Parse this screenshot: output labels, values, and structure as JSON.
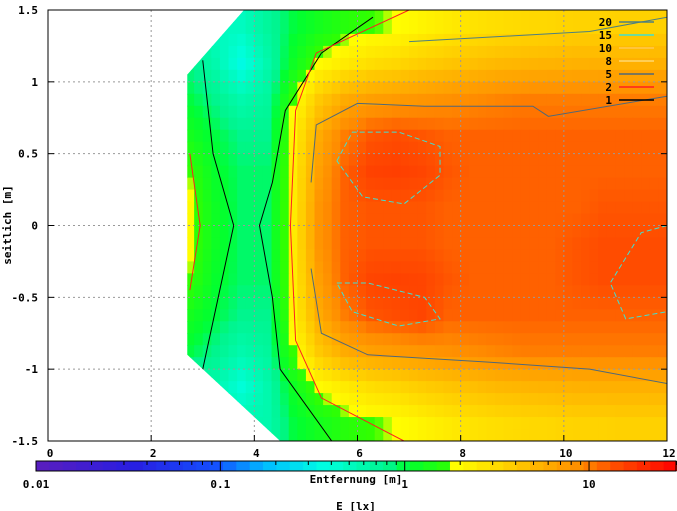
{
  "chart_data": {
    "type": "heatmap",
    "xlabel": "Entfernung [m]",
    "ylabel": "seitlich [m]",
    "colorbar_label": "E [lx]",
    "xlim": [
      0,
      12
    ],
    "ylim": [
      -1.5,
      1.5
    ],
    "grid": true,
    "x_ticks": [
      "0",
      "2",
      "4",
      "6",
      "8",
      "10",
      "12"
    ],
    "x_tick_values": [
      0,
      2,
      4,
      6,
      8,
      10,
      12
    ],
    "y_ticks": [
      "1.5",
      "1",
      "0.5",
      "0",
      "-0.5",
      "-1",
      "-1.5"
    ],
    "y_tick_values": [
      1.5,
      1,
      0.5,
      0,
      -0.5,
      -1,
      -1.5
    ],
    "colorbar": {
      "scale": "log",
      "range": [
        0.01,
        30
      ],
      "ticks": [
        "0.01",
        "0.1",
        "1",
        "10"
      ],
      "tick_values": [
        0.01,
        0.1,
        1,
        10
      ]
    },
    "legend_position": "top-right",
    "grid_x_edges": [
      2.5,
      12
    ],
    "grid_x_step": 0.5,
    "grid_y_edges": [
      1.5,
      -1.5
    ],
    "grid_y_step": 0.25,
    "values": [
      [
        null,
        null,
        0.5,
        0.7,
        1.0,
        1.3,
        1.6,
        1.8,
        1.9,
        2.2,
        2.5,
        2.8,
        3.0,
        3.2,
        3.3,
        3.5,
        3.5,
        3.6,
        3.6
      ],
      [
        0.8,
        0.6,
        0.35,
        0.6,
        1.2,
        2.0,
        2.5,
        3.0,
        3.3,
        3.8,
        4.2,
        4.6,
        5.0,
        5.2,
        5.4,
        5.5,
        5.6,
        5.6,
        5.6
      ],
      [
        1.0,
        0.8,
        0.6,
        0.7,
        1.8,
        4.0,
        6.0,
        7.0,
        7.5,
        8.0,
        8.5,
        9.0,
        9.5,
        10,
        10,
        10,
        10,
        10,
        10
      ],
      [
        1.3,
        1.0,
        0.8,
        0.8,
        2.2,
        6.0,
        10,
        13,
        14,
        13,
        12,
        12,
        12,
        12,
        12,
        12,
        12,
        12,
        12
      ],
      [
        1.8,
        1.1,
        0.9,
        0.9,
        2.4,
        7.0,
        12,
        15.5,
        16,
        15,
        13,
        12,
        12,
        12,
        12,
        12,
        12,
        12,
        12
      ],
      [
        2.0,
        1.2,
        0.9,
        0.9,
        2.5,
        8.0,
        12,
        13,
        13,
        13,
        12,
        12,
        12,
        12,
        12,
        12,
        13,
        13,
        13
      ],
      [
        2.0,
        1.2,
        0.9,
        0.9,
        2.5,
        8.0,
        12,
        13,
        13,
        13,
        12,
        12,
        12,
        12,
        12,
        13,
        14,
        14,
        14
      ],
      [
        1.8,
        1.1,
        0.9,
        0.9,
        2.4,
        7.0,
        12,
        15,
        15.5,
        15,
        13,
        12,
        12,
        12,
        12,
        13,
        14,
        14,
        14
      ],
      [
        1.3,
        1.0,
        0.8,
        0.8,
        2.2,
        6.0,
        10,
        13,
        14,
        15,
        12,
        12,
        12,
        12,
        12,
        12,
        12,
        12,
        12
      ],
      [
        1.0,
        0.8,
        0.6,
        0.7,
        1.8,
        4.0,
        6.0,
        7.0,
        7.5,
        8.0,
        8.5,
        9.0,
        9.5,
        10,
        10,
        10,
        10,
        10,
        10
      ],
      [
        null,
        0.6,
        0.4,
        0.6,
        1.2,
        2.0,
        2.5,
        3.0,
        3.3,
        3.8,
        4.2,
        4.6,
        5.0,
        5.2,
        5.4,
        5.5,
        5.6,
        5.6,
        5.6
      ],
      [
        null,
        null,
        null,
        0.6,
        1.0,
        1.3,
        1.6,
        1.8,
        1.9,
        2.2,
        2.5,
        2.8,
        3.0,
        3.2,
        3.3,
        3.5,
        3.5,
        3.6,
        3.6
      ]
    ],
    "legend": [
      {
        "label": "20",
        "color": "#4d7f80"
      },
      {
        "label": "15",
        "color": "#40e0d0"
      },
      {
        "label": "10",
        "color": "#ffc850"
      },
      {
        "label": "8",
        "color": "#ffd870"
      },
      {
        "label": "5",
        "color": "#506878"
      },
      {
        "label": "2",
        "color": "#ff2020"
      },
      {
        "label": "1",
        "color": "#000000"
      }
    ],
    "contours": [
      {
        "level": "1",
        "color": "#000000",
        "dashed": false,
        "points": [
          [
            3.0,
            1.15
          ],
          [
            3.2,
            0.5
          ],
          [
            3.6,
            0
          ],
          [
            3.3,
            -0.5
          ],
          [
            3.0,
            -1.0
          ]
        ]
      },
      {
        "level": "1",
        "color": "#000000",
        "dashed": false,
        "points": [
          [
            6.3,
            1.45
          ],
          [
            5.3,
            1.2
          ],
          [
            4.6,
            0.8
          ],
          [
            4.35,
            0.3
          ],
          [
            4.1,
            0
          ],
          [
            4.35,
            -0.5
          ],
          [
            4.5,
            -1.0
          ],
          [
            5.5,
            -1.5
          ]
        ]
      },
      {
        "level": "2",
        "color": "#ff2020",
        "dashed": false,
        "points": [
          [
            2.75,
            0.5
          ],
          [
            2.95,
            0
          ],
          [
            2.75,
            -0.45
          ]
        ]
      },
      {
        "level": "2",
        "color": "#ff2020",
        "dashed": false,
        "points": [
          [
            7.0,
            1.5
          ],
          [
            5.2,
            1.2
          ],
          [
            4.8,
            0.8
          ],
          [
            4.7,
            0
          ],
          [
            4.8,
            -0.8
          ],
          [
            5.3,
            -1.2
          ],
          [
            6.9,
            -1.5
          ]
        ]
      },
      {
        "level": "5",
        "color": "#506878",
        "dashed": false,
        "points": [
          [
            5.1,
            0.3
          ],
          [
            5.2,
            0.7
          ],
          [
            6.0,
            0.85
          ],
          [
            7.3,
            0.83
          ],
          [
            9.4,
            0.83
          ],
          [
            9.7,
            0.76
          ],
          [
            12,
            0.9
          ]
        ]
      },
      {
        "level": "5",
        "color": "#506878",
        "dashed": false,
        "points": [
          [
            5.1,
            -0.3
          ],
          [
            5.3,
            -0.75
          ],
          [
            6.2,
            -0.9
          ],
          [
            8.5,
            -0.95
          ],
          [
            10.5,
            -1.0
          ],
          [
            12,
            -1.1
          ]
        ]
      },
      {
        "level": "20",
        "color": "#4d7f80",
        "dashed": false,
        "points": [
          [
            7.0,
            1.28
          ],
          [
            9.0,
            1.32
          ],
          [
            10.5,
            1.35
          ],
          [
            12,
            1.45
          ]
        ]
      },
      {
        "level": "15",
        "color": "#40e0d0",
        "dashed": true,
        "points": [
          [
            5.6,
            0.45
          ],
          [
            5.9,
            0.65
          ],
          [
            6.8,
            0.65
          ],
          [
            7.6,
            0.55
          ],
          [
            7.6,
            0.35
          ],
          [
            6.9,
            0.15
          ],
          [
            6.1,
            0.2
          ],
          [
            5.6,
            0.45
          ]
        ]
      },
      {
        "level": "15",
        "color": "#40e0d0",
        "dashed": true,
        "points": [
          [
            5.6,
            -0.4
          ],
          [
            6.2,
            -0.4
          ],
          [
            7.3,
            -0.5
          ],
          [
            7.6,
            -0.65
          ],
          [
            6.8,
            -0.7
          ],
          [
            5.9,
            -0.6
          ],
          [
            5.6,
            -0.4
          ]
        ]
      },
      {
        "level": "15",
        "color": "#40e0d0",
        "dashed": true,
        "points": [
          [
            12,
            0
          ],
          [
            11.5,
            -0.05
          ],
          [
            10.9,
            -0.4
          ],
          [
            11.2,
            -0.65
          ],
          [
            12,
            -0.6
          ]
        ]
      }
    ]
  }
}
